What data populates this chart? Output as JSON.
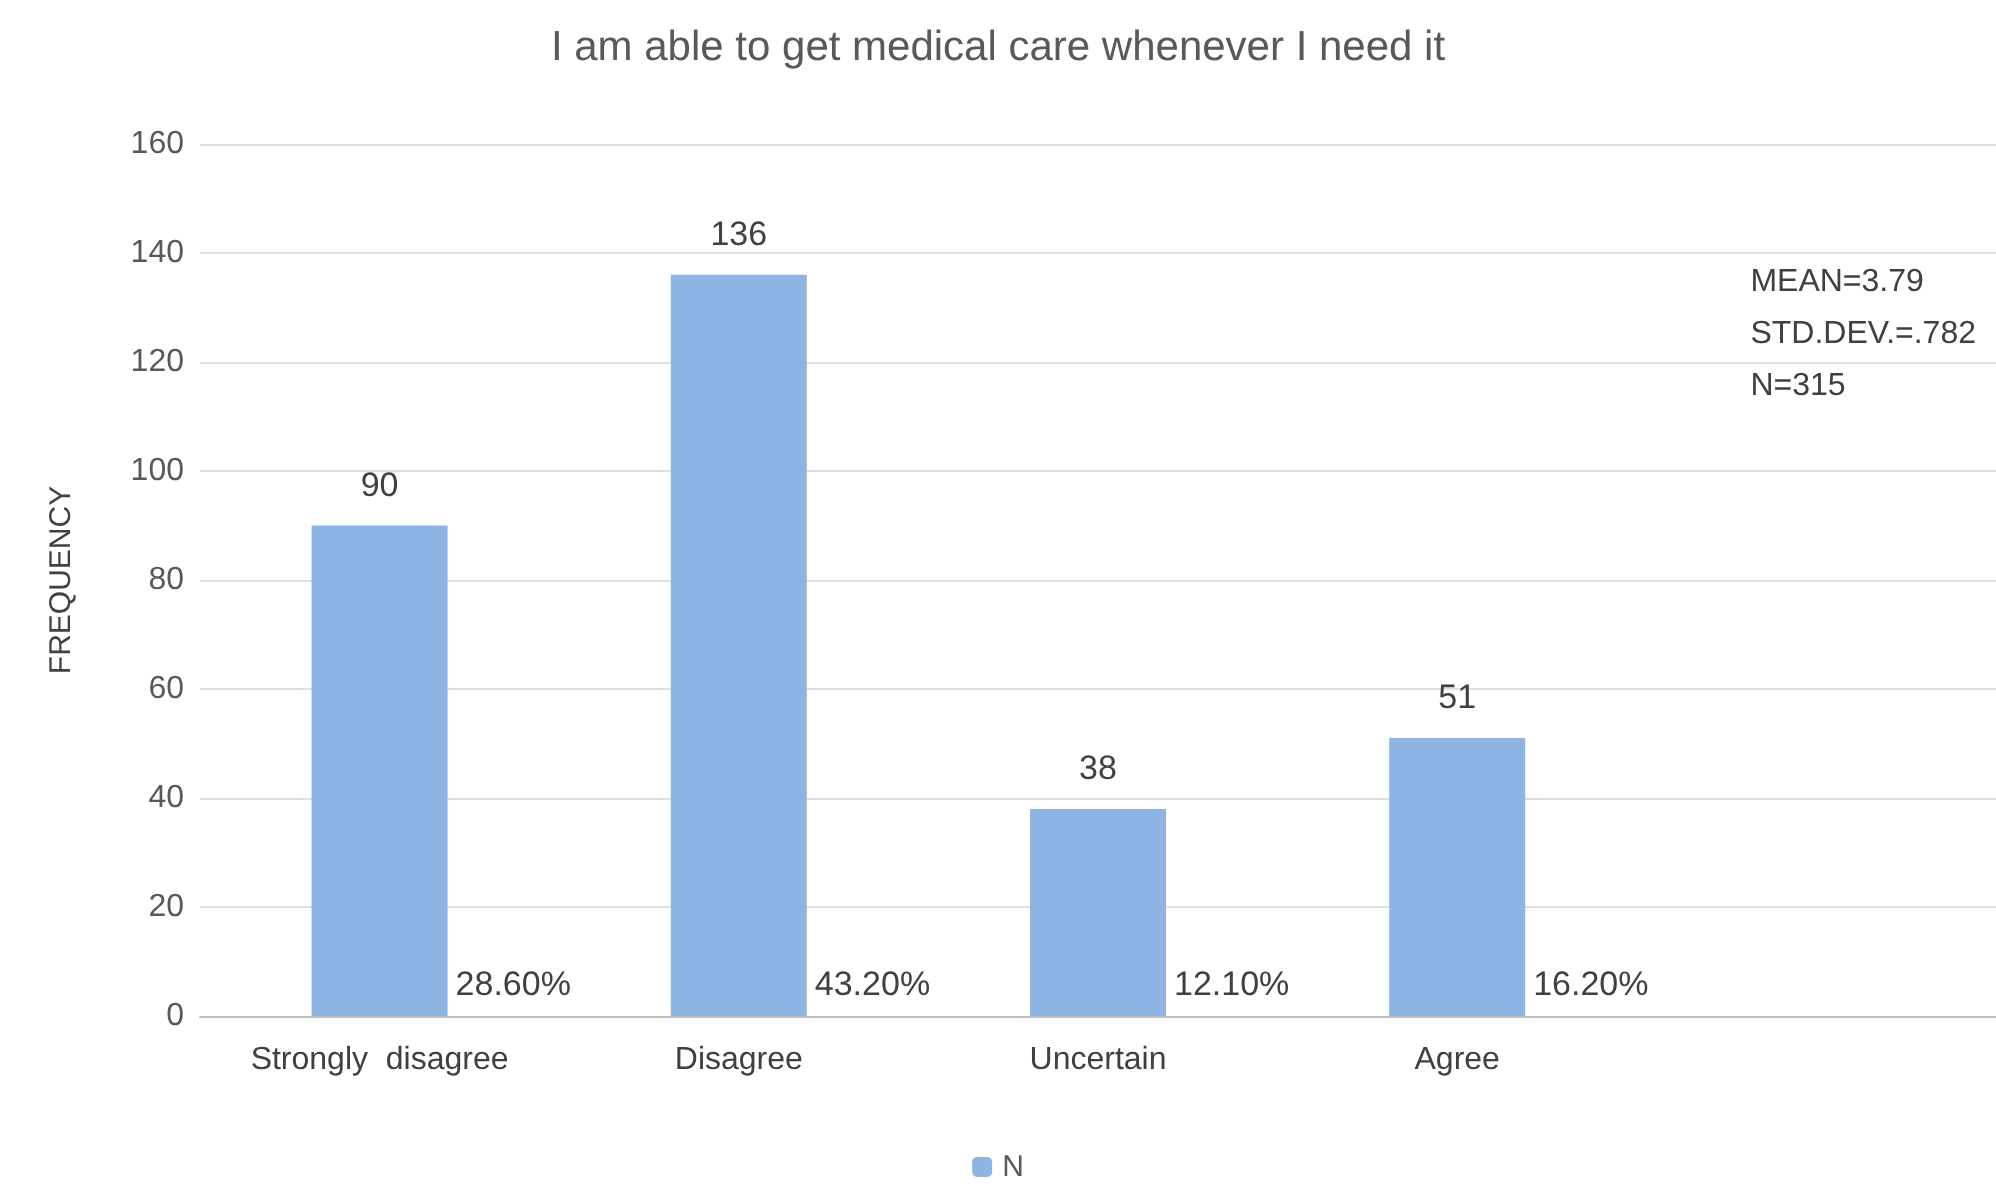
{
  "chart_data": {
    "type": "bar",
    "title": "I am able to get medical care whenever I need it",
    "ylabel": "FREQUENCY",
    "categories": [
      "Strongly  disagree",
      "Disagree",
      "Uncertain",
      "Agree",
      null
    ],
    "series": [
      {
        "name": "N",
        "color": "#8db4e2",
        "values": [
          90,
          136,
          38,
          51,
          null
        ]
      }
    ],
    "data_labels": true,
    "ylim": [
      0,
      160
    ],
    "yticks": [
      0,
      20,
      40,
      60,
      80,
      100,
      120,
      140,
      160
    ],
    "grid": "y",
    "legend": "bottom",
    "annotations": [
      "MEAN=3.79",
      "STD.DEV.=.782",
      "N=315",
      {
        "text": "28.60%",
        "x": "Strongly  disagree",
        "y": 0
      },
      {
        "text": "43.20%",
        "x": "Disagree",
        "y": 0
      },
      {
        "text": "12.10%",
        "x": "Uncertain",
        "y": 0
      },
      {
        "text": "16.20%",
        "x": "Agree",
        "y": 0
      }
    ]
  }
}
